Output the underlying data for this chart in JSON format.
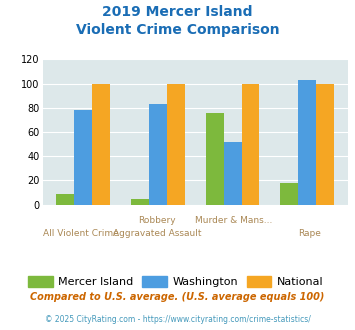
{
  "title_line1": "2019 Mercer Island",
  "title_line2": "Violent Crime Comparison",
  "cat_labels_top": [
    "",
    "Robbery",
    "Murder & Mans...",
    ""
  ],
  "cat_labels_bot": [
    "All Violent Crime",
    "Aggravated Assault",
    "",
    "Rape"
  ],
  "mercer_island": [
    9,
    5,
    76,
    18
  ],
  "washington": [
    78,
    83,
    52,
    103
  ],
  "national": [
    100,
    100,
    100,
    100
  ],
  "color_mercer": "#7db93d",
  "color_washington": "#4d9de0",
  "color_national": "#f5a623",
  "ylim": [
    0,
    120
  ],
  "yticks": [
    0,
    20,
    40,
    60,
    80,
    100,
    120
  ],
  "legend_labels": [
    "Mercer Island",
    "Washington",
    "National"
  ],
  "footnote1": "Compared to U.S. average. (U.S. average equals 100)",
  "footnote2": "© 2025 CityRating.com - https://www.cityrating.com/crime-statistics/",
  "bg_color": "#dde8ea",
  "title_color": "#1a6db5",
  "tick_label_color": "#aa8855",
  "footnote1_color": "#cc6600",
  "footnote2_color": "#4499bb"
}
